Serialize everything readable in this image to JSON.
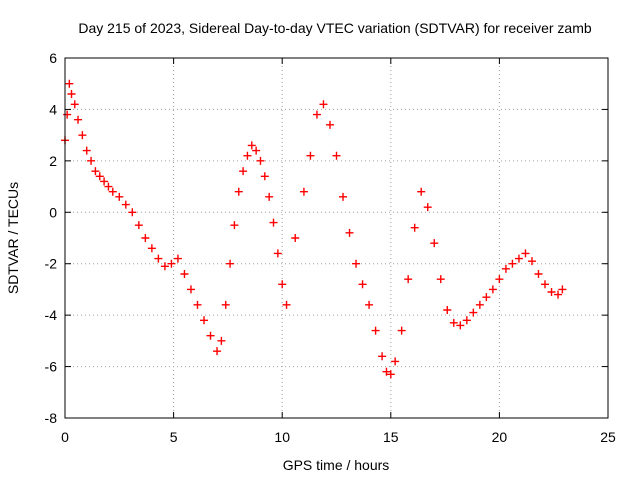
{
  "chart_data": {
    "type": "scatter",
    "title": "Day 215 of 2023, Sidereal Day-to-day VTEC variation (SDTVAR) for receiver zamb",
    "xlabel": "GPS time / hours",
    "ylabel": "SDTVAR / TECUs",
    "xlim": [
      0,
      25
    ],
    "ylim": [
      -8,
      6
    ],
    "xticks": [
      0,
      5,
      10,
      15,
      20,
      25
    ],
    "yticks": [
      -8,
      -6,
      -4,
      -2,
      0,
      2,
      4,
      6
    ],
    "xtick_labels": [
      "0",
      "5",
      "10",
      "15",
      "20",
      "25"
    ],
    "ytick_labels": [
      "-8",
      "-6",
      "-4",
      "-2",
      "0",
      "2",
      "4",
      "6"
    ],
    "grid": true,
    "marker": "+",
    "series": [
      {
        "name": "SDTVAR",
        "color": "#ff0000",
        "x": [
          0.0,
          0.1,
          0.2,
          0.3,
          0.45,
          0.6,
          0.8,
          1.0,
          1.2,
          1.4,
          1.6,
          1.8,
          2.0,
          2.2,
          2.5,
          2.8,
          3.1,
          3.4,
          3.7,
          4.0,
          4.3,
          4.6,
          4.9,
          5.2,
          5.5,
          5.8,
          6.1,
          6.4,
          6.7,
          7.0,
          7.2,
          7.4,
          7.6,
          7.8,
          8.0,
          8.2,
          8.4,
          8.6,
          8.8,
          9.0,
          9.2,
          9.4,
          9.6,
          9.8,
          10.0,
          10.2,
          10.6,
          11.0,
          11.3,
          11.6,
          11.9,
          12.2,
          12.5,
          12.8,
          13.1,
          13.4,
          13.7,
          14.0,
          14.3,
          14.6,
          14.8,
          15.0,
          15.2,
          15.5,
          15.8,
          16.1,
          16.4,
          16.7,
          17.0,
          17.3,
          17.6,
          17.9,
          18.2,
          18.5,
          18.8,
          19.1,
          19.4,
          19.7,
          20.0,
          20.3,
          20.6,
          20.9,
          21.2,
          21.5,
          21.8,
          22.1,
          22.4,
          22.7,
          22.9
        ],
        "y": [
          2.8,
          3.8,
          5.0,
          4.6,
          4.2,
          3.6,
          3.0,
          2.4,
          2.0,
          1.6,
          1.4,
          1.2,
          1.0,
          0.8,
          0.6,
          0.3,
          0.0,
          -0.5,
          -1.0,
          -1.4,
          -1.8,
          -2.1,
          -2.0,
          -1.8,
          -2.4,
          -3.0,
          -3.6,
          -4.2,
          -4.8,
          -5.4,
          -5.0,
          -3.6,
          -2.0,
          -0.5,
          0.8,
          1.6,
          2.2,
          2.6,
          2.4,
          2.0,
          1.4,
          0.6,
          -0.4,
          -1.6,
          -2.8,
          -3.6,
          -1.0,
          0.8,
          2.2,
          3.8,
          4.2,
          3.4,
          2.2,
          0.6,
          -0.8,
          -2.0,
          -2.8,
          -3.6,
          -4.6,
          -5.6,
          -6.2,
          -6.3,
          -5.8,
          -4.6,
          -2.6,
          -0.6,
          0.8,
          0.2,
          -1.2,
          -2.6,
          -3.8,
          -4.3,
          -4.4,
          -4.2,
          -3.9,
          -3.6,
          -3.3,
          -3.0,
          -2.6,
          -2.2,
          -2.0,
          -1.8,
          -1.6,
          -1.9,
          -2.4,
          -2.8,
          -3.1,
          -3.2,
          -3.0
        ]
      }
    ]
  }
}
